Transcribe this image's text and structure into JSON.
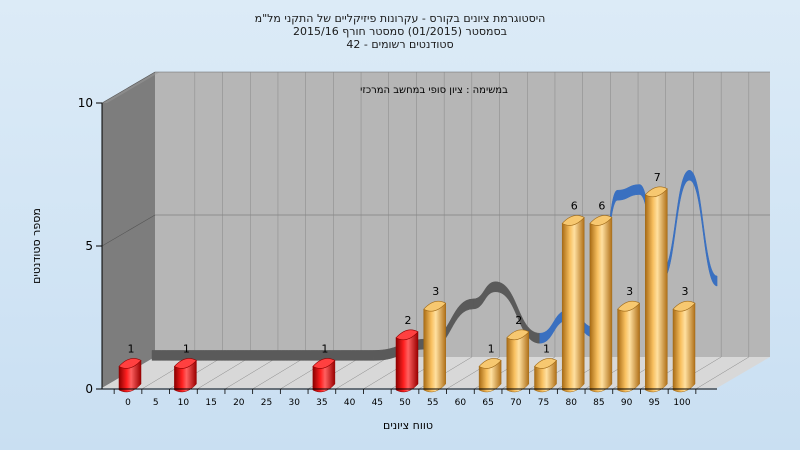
{
  "chart_data": {
    "type": "bar",
    "title_lines": [
      "היסטוגרמת ציונים בקורס - עקרונות פיזיקליים של התקני מל\"מ",
      "בסמסטר  (01/2015)  סמסטר חורף 2015/16",
      "סטודנטים רשומים - 42"
    ],
    "subtitle": "במשימה : ציון סופי במחשב המרכזי",
    "xlabel": "טווח ציונים",
    "ylabel": "מספר סטודנטים",
    "ylim": [
      0,
      10
    ],
    "yticks": [
      "0",
      "5",
      "10"
    ],
    "xticks": [
      "0",
      "5",
      "10",
      "15",
      "20",
      "25",
      "30",
      "35",
      "40",
      "45",
      "50",
      "55",
      "60",
      "65",
      "70",
      "75",
      "80",
      "85",
      "90",
      "95",
      "100"
    ],
    "bars": [
      {
        "x": 0,
        "value": 1,
        "label": "1",
        "color": "red"
      },
      {
        "x": 10,
        "value": 1,
        "label": "1",
        "color": "red"
      },
      {
        "x": 35,
        "value": 1,
        "label": "1",
        "color": "red"
      },
      {
        "x": 50,
        "value": 2,
        "label": "2",
        "color": "red"
      },
      {
        "x": 55,
        "value": 3,
        "label": "3",
        "color": "orange"
      },
      {
        "x": 65,
        "value": 1,
        "label": "1",
        "color": "orange"
      },
      {
        "x": 70,
        "value": 2,
        "label": "2",
        "color": "orange"
      },
      {
        "x": 75,
        "value": 1,
        "label": "1",
        "color": "orange"
      },
      {
        "x": 80,
        "value": 6,
        "label": "6",
        "color": "orange"
      },
      {
        "x": 85,
        "value": 6,
        "label": "6",
        "color": "orange"
      },
      {
        "x": 90,
        "value": 3,
        "label": "3",
        "color": "orange"
      },
      {
        "x": 95,
        "value": 7,
        "label": "7",
        "color": "orange"
      },
      {
        "x": 100,
        "value": 3,
        "label": "3",
        "color": "orange"
      }
    ],
    "ribbon": [
      {
        "x": 0,
        "y": 1.0
      },
      {
        "x": 20,
        "y": 1.0
      },
      {
        "x": 40,
        "y": 1.0
      },
      {
        "x": 50,
        "y": 1.4
      },
      {
        "x": 58,
        "y": 2.8
      },
      {
        "x": 62,
        "y": 3.4
      },
      {
        "x": 70,
        "y": 1.6
      },
      {
        "x": 75,
        "y": 2.4
      },
      {
        "x": 80,
        "y": 1.8
      },
      {
        "x": 84,
        "y": 6.6
      },
      {
        "x": 88,
        "y": 6.8
      },
      {
        "x": 92,
        "y": 3.8
      },
      {
        "x": 97,
        "y": 7.3
      },
      {
        "x": 102,
        "y": 3.6
      }
    ],
    "colors": {
      "red": "#e00000",
      "orange": "#f0b040",
      "ribbon_gray": "#5a5a5a",
      "ribbon_blue": "#3a70c0",
      "wall_back": "#b6b6b6",
      "wall_side": "#7d7d7d",
      "floor": "#d8d8d8"
    }
  }
}
